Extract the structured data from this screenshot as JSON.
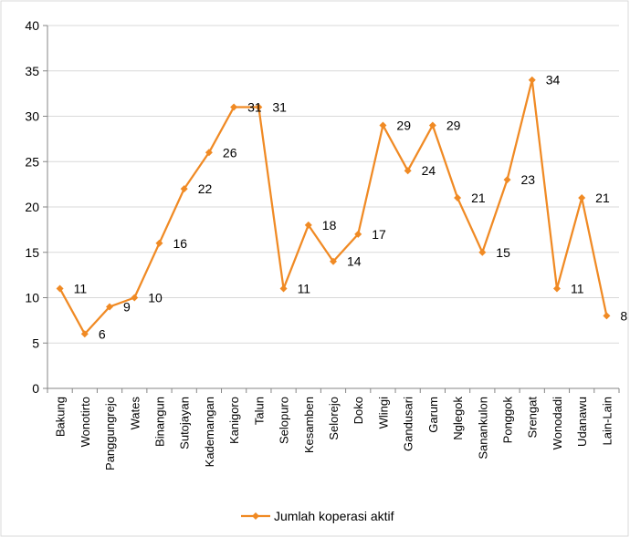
{
  "chart_data": {
    "type": "line",
    "categories": [
      "Bakung",
      "Wonotirto",
      "Panggungrejo",
      "Wates",
      "Binangun",
      "Sutojayan",
      "Kademangan",
      "Kanigoro",
      "Talun",
      "Selopuro",
      "Kesamben",
      "Selorejo",
      "Doko",
      "Wlingi",
      "Gandusari",
      "Garum",
      "Nglegok",
      "Sanankulon",
      "Ponggok",
      "Srengat",
      "Wonodadi",
      "Udanawu",
      "Lain-Lain"
    ],
    "series": [
      {
        "name": "Jumlah koperasi aktif",
        "values": [
          11,
          6,
          9,
          10,
          16,
          22,
          26,
          31,
          31,
          11,
          18,
          14,
          17,
          29,
          24,
          29,
          21,
          15,
          23,
          34,
          11,
          21,
          8
        ],
        "color": "#F08A24"
      }
    ],
    "title": "",
    "xlabel": "",
    "ylabel": "",
    "ylim": [
      0,
      40
    ],
    "yticks": [
      0,
      5,
      10,
      15,
      20,
      25,
      30,
      35,
      40
    ],
    "grid": "horizontal",
    "legend": "bottom",
    "data_labels": true,
    "colors": {
      "line": "#F08A24",
      "grid": "#D9D9D9",
      "axis": "#868686",
      "border": "#D9D9D9"
    }
  }
}
